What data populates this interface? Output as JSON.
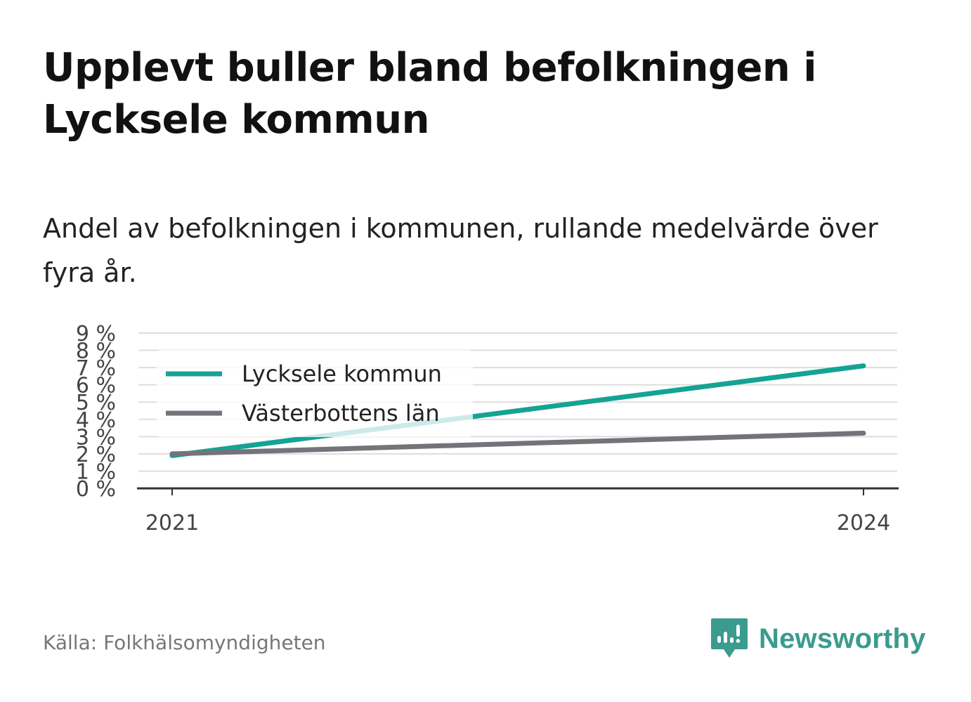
{
  "header": {
    "title": "Upplevt buller bland befolkningen i Lycksele kommun",
    "subtitle": "Andel av befolkningen i kommunen, rullande medelvärde över fyra år."
  },
  "footer": {
    "source": "Källa: Folkhälsomyndigheten",
    "logo_text": "Newsworthy"
  },
  "colors": {
    "lycksele": "#14a395",
    "vasterbotten": "#75737a",
    "grid": "#dddddd",
    "axis": "#333333",
    "brand": "#3a9b8e"
  },
  "chart_data": {
    "type": "line",
    "title": "Upplevt buller bland befolkningen i Lycksele kommun",
    "subtitle": "Andel av befolkningen i kommunen, rullande medelvärde över fyra år.",
    "xlabel": "",
    "ylabel": "",
    "x": [
      2021,
      2024
    ],
    "x_ticks": [
      "2021",
      "2024"
    ],
    "ylim": [
      0,
      9
    ],
    "y_ticks": [
      "0 %",
      "1 %",
      "2 %",
      "3 %",
      "4 %",
      "5 %",
      "6 %",
      "7 %",
      "8 %",
      "9 %"
    ],
    "grid": true,
    "legend_position": "top-left",
    "series": [
      {
        "name": "Lycksele kommun",
        "values": [
          1.9,
          7.1
        ],
        "color": "#14a395"
      },
      {
        "name": "Västerbottens län",
        "values": [
          2.0,
          3.2
        ],
        "color": "#75737a"
      }
    ]
  }
}
